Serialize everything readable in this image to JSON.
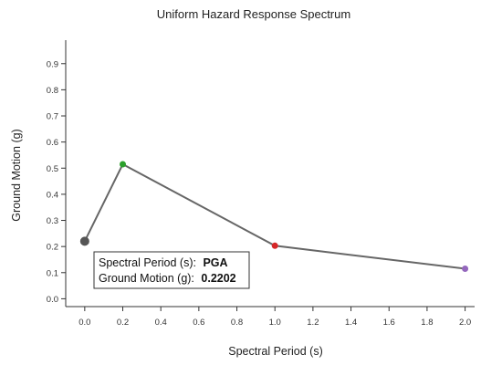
{
  "chart_data": {
    "type": "line",
    "title": "Uniform Hazard Response Spectrum",
    "xlabel": "Spectral Period (s)",
    "ylabel": "Ground Motion (g)",
    "xlim": [
      -0.1,
      2.05
    ],
    "ylim": [
      -0.03,
      0.99
    ],
    "x_ticks": [
      0.0,
      0.2,
      0.4,
      0.6,
      0.8,
      1.0,
      1.2,
      1.4,
      1.6,
      1.8,
      2.0
    ],
    "y_ticks": [
      0.0,
      0.1,
      0.2,
      0.3,
      0.4,
      0.5,
      0.6,
      0.7,
      0.8,
      0.9
    ],
    "x_tick_labels": [
      "0.0",
      "0.2",
      "0.4",
      "0.6",
      "0.8",
      "1.0",
      "1.2",
      "1.4",
      "1.6",
      "1.8",
      "2.0"
    ],
    "y_tick_labels": [
      "0.0",
      "0.1",
      "0.2",
      "0.3",
      "0.4",
      "0.5",
      "0.6",
      "0.7",
      "0.8",
      "0.9"
    ],
    "grid": false,
    "series": [
      {
        "x": [
          0.0,
          0.2,
          1.0,
          2.0
        ],
        "values": [
          0.2202,
          0.515,
          0.203,
          0.115
        ],
        "line_color": "#666666",
        "point_colors": [
          "#555555",
          "#2ca02c",
          "#d62728",
          "#9467bd"
        ],
        "highlighted_index": 0
      }
    ],
    "tooltip": {
      "period_label": "Spectral Period (s):",
      "period_value": "PGA",
      "motion_label": "Ground Motion (g):",
      "motion_value": "0.2202"
    }
  }
}
